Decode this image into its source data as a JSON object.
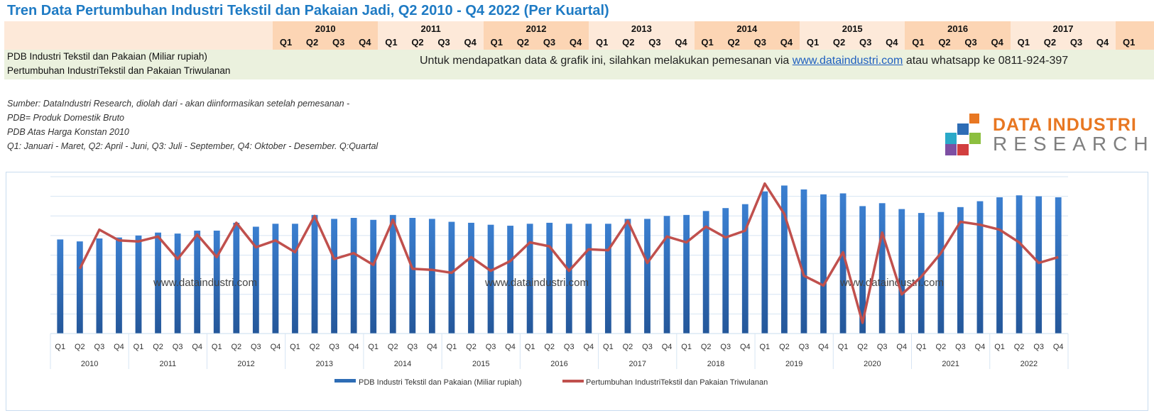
{
  "title": "Tren Data Pertumbuhan Industri Tekstil dan Pakaian Jadi, Q2 2010 - Q4 2022 (Per Kuartal)",
  "header_table": {
    "years": [
      "2010",
      "2011",
      "2012",
      "2013",
      "2014",
      "2015",
      "2016",
      "2017"
    ],
    "quarters": [
      "Q1",
      "Q2",
      "Q3",
      "Q4"
    ],
    "trailing_quarter": "Q1",
    "row_labels": [
      "PDB Industri Tekstil dan Pakaian (Miliar rupiah)",
      "Pertumbuhan IndustriTekstil dan Pakaian Triwulanan"
    ],
    "promo_prefix": "Untuk mendapatkan data & grafik ini, silahkan melakukan pemesanan via ",
    "promo_link": "www.dataindustri.com",
    "promo_suffix": " atau whatsapp ke 0811-924-397"
  },
  "notes": [
    "Sumber: DataIndustri Research, diolah dari - akan diinformasikan setelah pemesanan -",
    "PDB= Produk Domestik Bruto",
    "PDB Atas Harga Konstan 2010",
    "Q1: Januari - Maret, Q2: April - Juni, Q3: Juli - September, Q4: Oktober - Desember. Q:Quartal"
  ],
  "logo": {
    "line1": "DATA INDUSTRI",
    "line2": "RESEARCH"
  },
  "colors": {
    "title": "#1f7bc4",
    "bar": "#2e6db5",
    "line": "#c0504d",
    "header_dark": "#fcd5b4",
    "header_light": "#fde9d9",
    "row_band": "#ebf1de",
    "gridline": "#d6e4f3"
  },
  "chart_data": {
    "type": "bar",
    "title": "",
    "xlabel": "",
    "ylabel": "",
    "y_axis_labels_shown": false,
    "value_units": "relative gridline units (no axis scale printed)",
    "ylim": [
      0,
      8
    ],
    "grid": true,
    "legend_position": "bottom",
    "watermark": "www.dataindustri.com",
    "years": [
      "2010",
      "2011",
      "2012",
      "2013",
      "2014",
      "2015",
      "2016",
      "2017",
      "2018",
      "2019",
      "2020",
      "2021",
      "2022"
    ],
    "quarters": [
      "Q1",
      "Q2",
      "Q3",
      "Q4"
    ],
    "series": [
      {
        "name": "PDB Industri Tekstil dan Pakaian (Miliar rupiah)",
        "kind": "bar",
        "values": [
          4.8,
          4.7,
          4.85,
          4.9,
          5.0,
          5.15,
          5.1,
          5.25,
          5.25,
          5.65,
          5.45,
          5.6,
          5.6,
          6.05,
          5.85,
          5.9,
          5.8,
          6.05,
          5.9,
          5.85,
          5.7,
          5.65,
          5.55,
          5.5,
          5.6,
          5.65,
          5.6,
          5.6,
          5.6,
          5.85,
          5.85,
          6.0,
          6.05,
          6.25,
          6.4,
          6.6,
          7.25,
          7.55,
          7.35,
          7.1,
          7.15,
          6.5,
          6.65,
          6.35,
          6.15,
          6.2,
          6.45,
          6.75,
          6.95,
          7.05,
          7.0,
          6.95
        ]
      },
      {
        "name": "Pertumbuhan IndustriTekstil dan Pakaian Triwulanan",
        "kind": "line",
        "values": [
          null,
          3.3,
          5.3,
          4.75,
          4.7,
          4.95,
          3.8,
          5.05,
          3.9,
          5.65,
          4.4,
          4.75,
          4.15,
          6.0,
          3.8,
          4.1,
          3.5,
          5.8,
          3.3,
          3.25,
          3.1,
          3.9,
          3.2,
          3.7,
          4.65,
          4.45,
          3.2,
          4.3,
          4.25,
          5.75,
          3.6,
          4.95,
          4.65,
          5.45,
          4.9,
          5.25,
          7.65,
          6.1,
          2.95,
          2.45,
          4.15,
          0.55,
          5.15,
          2.0,
          2.9,
          4.1,
          5.7,
          5.55,
          5.3,
          4.65,
          3.6,
          3.9
        ]
      }
    ]
  }
}
